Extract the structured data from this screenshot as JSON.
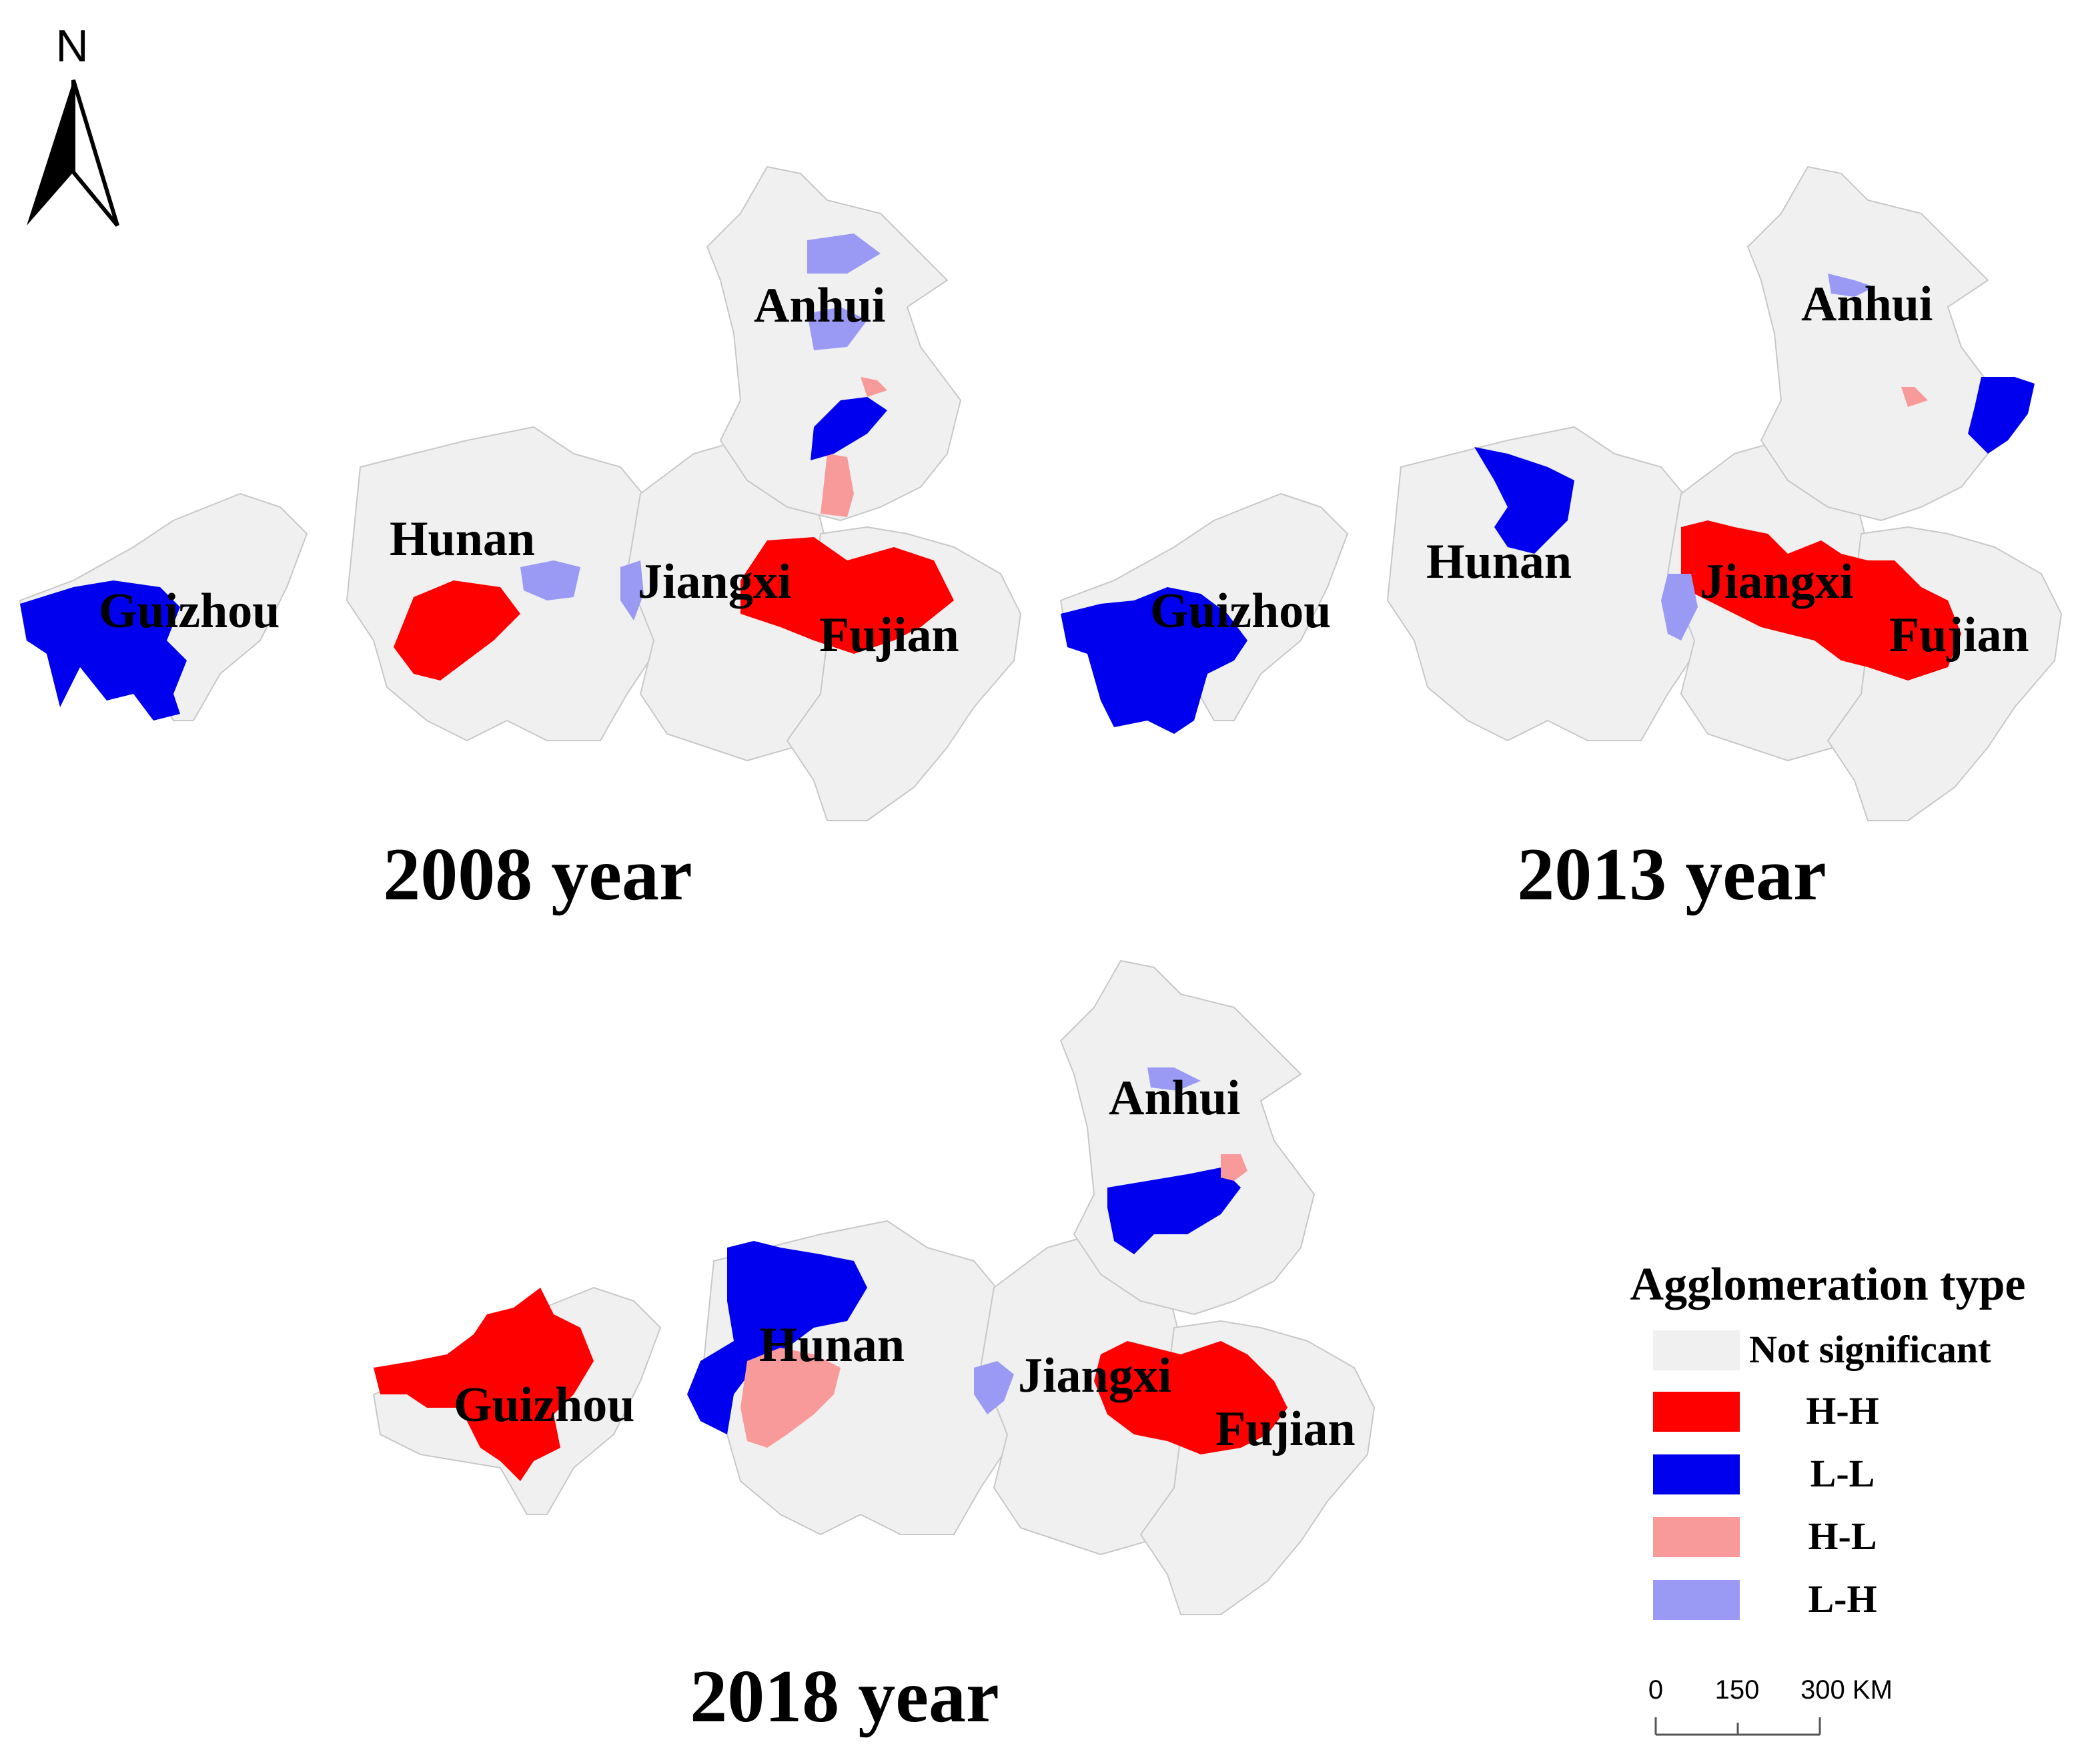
{
  "north_arrow": {
    "letter": "N"
  },
  "colors": {
    "not_significant": "#f0f0f0",
    "hh": "#ff0000",
    "ll": "#0000ee",
    "hl": "#f99a9a",
    "lh": "#9a9af5",
    "boundary": "#c8c8c8"
  },
  "maps": [
    {
      "id": "2008",
      "year_label": "2008 year",
      "province_labels": {
        "anhui": "Anhui",
        "hunan": "Hunan",
        "guizhou": "Guizhou",
        "jiangxi": "Jiangxi",
        "fujian": "Fujian"
      },
      "clusters": {
        "guizhou_west": "L-L",
        "hunan_west": "H-H",
        "hunan_east": "L-H",
        "jiangxi_west": "L-H",
        "fujian_north": "H-H",
        "jiangxi_north": "H-L",
        "anhui_south": "L-L",
        "anhui_south_tip": "H-L",
        "anhui_north_1": "L-H",
        "anhui_north_2": "L-H"
      }
    },
    {
      "id": "2013",
      "year_label": "2013 year",
      "province_labels": {
        "anhui": "Anhui",
        "hunan": "Hunan",
        "guizhou": "Guizhou",
        "jiangxi": "Jiangxi",
        "fujian": "Fujian"
      },
      "clusters": {
        "guizhou_west": "L-L",
        "hunan_north": "L-L",
        "jiangxi_central": "H-H",
        "jiangxi_west": "L-H",
        "anhui_southeast": "L-L",
        "anhui_south_tip": "H-L",
        "anhui_north": "L-H"
      }
    },
    {
      "id": "2018",
      "year_label": "2018 year",
      "province_labels": {
        "anhui": "Anhui",
        "hunan": "Hunan",
        "guizhou": "Guizhou",
        "jiangxi": "Jiangxi",
        "fujian": "Fujian"
      },
      "clusters": {
        "guizhou_central": "H-H",
        "hunan_north": "L-L",
        "hunan_south": "H-L",
        "jiangxi_west": "L-H",
        "fujian_north": "H-H",
        "anhui_south": "L-L",
        "anhui_south_tip": "H-L",
        "anhui_north": "L-H"
      }
    }
  ],
  "legend": {
    "title": "Agglomeration type",
    "items": [
      {
        "key": "not_significant",
        "label": "Not significant"
      },
      {
        "key": "hh",
        "label": "H-H"
      },
      {
        "key": "ll",
        "label": "L-L"
      },
      {
        "key": "hl",
        "label": "H-L"
      },
      {
        "key": "lh",
        "label": "L-H"
      }
    ]
  },
  "scale_bar": {
    "ticks": [
      "0",
      "150",
      "300 KM"
    ]
  }
}
